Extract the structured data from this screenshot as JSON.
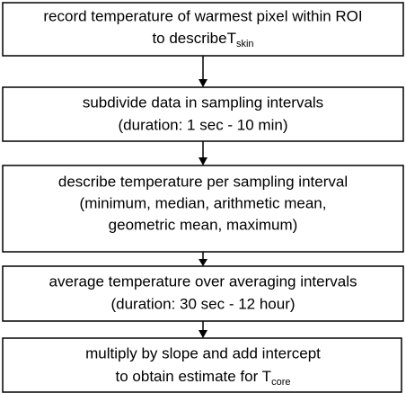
{
  "nodes": [
    {
      "lines": [
        "record temperature of warmest pixel within ROI",
        "to describeT"
      ],
      "subscript": "skin"
    },
    {
      "lines": [
        "subdivide data in sampling intervals",
        "(duration: 1 sec - 10 min)"
      ]
    },
    {
      "lines": [
        "describe temperature per sampling interval",
        "(minimum, median, arithmetic mean,",
        "geometric mean, maximum)"
      ]
    },
    {
      "lines": [
        "average temperature over averaging intervals",
        "(duration: 30 sec - 12 hour)"
      ]
    },
    {
      "lines": [
        "multiply by slope and add intercept",
        "to obtain estimate for T"
      ],
      "subscript": "core"
    }
  ]
}
